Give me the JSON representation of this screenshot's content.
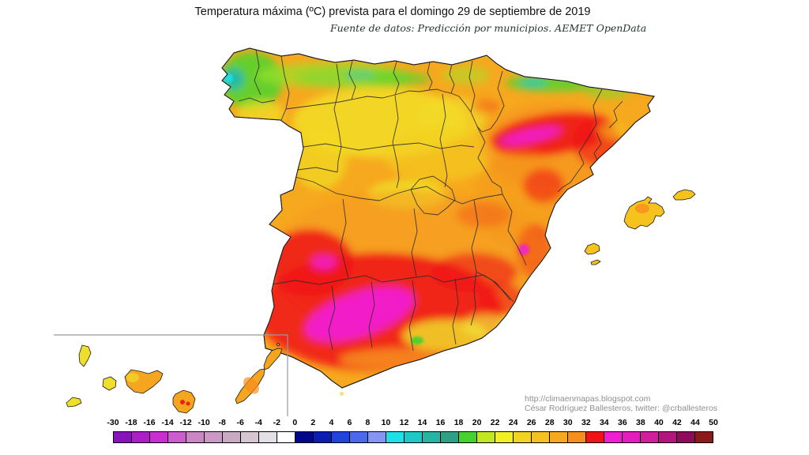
{
  "header": {
    "title": "Temperatura máxima (ºC) prevista para el domingo 29 de septiembre de 2019",
    "subtitle": "Fuente de datos: Predicción por municipios. AEMET OpenData"
  },
  "attribution": {
    "line1": "http://climaenmapas.blogspot.com",
    "line2": "César Rodríguez Ballesteros, twitter: @crballesteros"
  },
  "legend": {
    "unit": "ºC",
    "labels": [
      "-30",
      "-18",
      "-16",
      "-14",
      "-12",
      "-10",
      "-8",
      "-6",
      "-4",
      "-2",
      "0",
      "2",
      "4",
      "6",
      "8",
      "10",
      "12",
      "14",
      "16",
      "18",
      "20",
      "22",
      "24",
      "26",
      "28",
      "30",
      "32",
      "34",
      "36",
      "38",
      "40",
      "42",
      "44",
      "50"
    ],
    "cell_colors": [
      "#8812BE",
      "#AE1EC8",
      "#C92ED2",
      "#CE5CD0",
      "#CC86C4",
      "#CC99C6",
      "#C8AAC2",
      "#D6C6D2",
      "#E2E0E4",
      "#FFFFFF",
      "#02088C",
      "#0A1EB4",
      "#1E46DC",
      "#4A6AEC",
      "#8495F4",
      "#1EE0E8",
      "#1EC8C8",
      "#28B4A4",
      "#2EA086",
      "#46D22E",
      "#C2E622",
      "#F0F022",
      "#F2D222",
      "#F6C01E",
      "#F6A81E",
      "#F68E1E",
      "#F01414",
      "#F01ED2",
      "#E41EBE",
      "#D21E9E",
      "#B4147E",
      "#8E0A5A",
      "#8C1A1A"
    ]
  },
  "map_palette": {
    "base_orange": "#F6A81E",
    "warm_orange": "#F6921E",
    "yellow": "#F0E426",
    "yellow_green": "#C2E626",
    "green": "#46D22E",
    "teal": "#22B4A8",
    "cyan": "#1EE0E8",
    "hot_red": "#F01414",
    "very_hot_magenta": "#F21ED2",
    "boundary_line": "#2D2D2D",
    "coast_line": "#1A1A1A",
    "inset_box": "#9A9A9A"
  }
}
